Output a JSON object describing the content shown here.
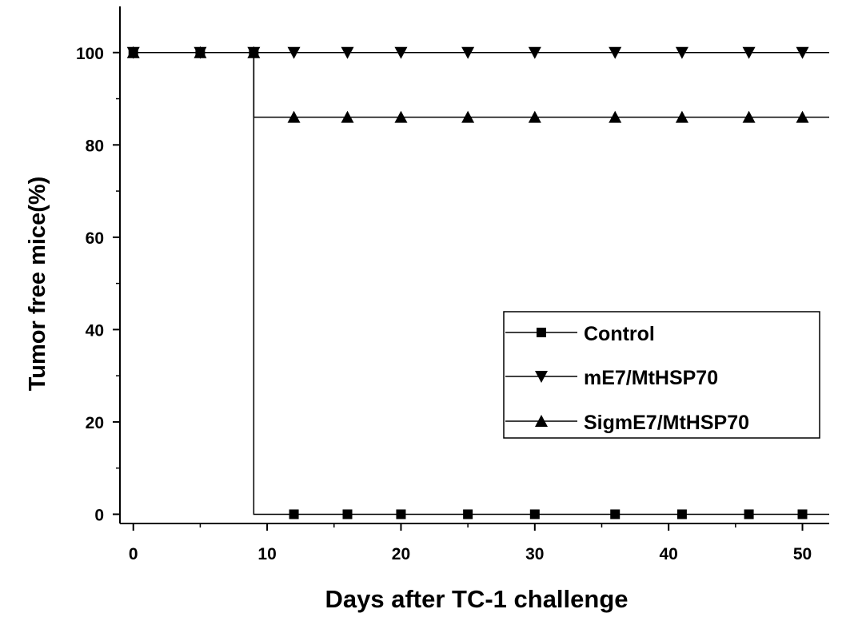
{
  "chart_data": {
    "type": "line",
    "title": "",
    "xlabel": "Days after TC-1 challenge",
    "ylabel": "Tumor free mice(%)",
    "xlim": [
      -1,
      52
    ],
    "ylim": [
      -2,
      110
    ],
    "xticks": [
      0,
      10,
      20,
      30,
      40,
      50
    ],
    "yticks": [
      0,
      20,
      40,
      60,
      80,
      100
    ],
    "xtick_labels": [
      "0",
      "10",
      "20",
      "30",
      "40",
      "50"
    ],
    "ytick_labels": [
      "0",
      "20",
      "40",
      "60",
      "80",
      "100"
    ],
    "grid": false,
    "legend_position": "center-right",
    "step_day": 9,
    "series": [
      {
        "name": "Control",
        "marker": "square",
        "x": [
          0,
          5,
          9,
          12,
          16,
          20,
          25,
          30,
          36,
          41,
          46,
          50
        ],
        "y": [
          100,
          100,
          100,
          0,
          0,
          0,
          0,
          0,
          0,
          0,
          0,
          0
        ]
      },
      {
        "name": "mE7/MtHSP70",
        "marker": "triangle-down",
        "x": [
          0,
          5,
          9,
          12,
          16,
          20,
          25,
          30,
          36,
          41,
          46,
          50
        ],
        "y": [
          100,
          100,
          100,
          100,
          100,
          100,
          100,
          100,
          100,
          100,
          100,
          100
        ]
      },
      {
        "name": "SigmE7/MtHSP70",
        "marker": "triangle-up",
        "x": [
          0,
          5,
          9,
          12,
          16,
          20,
          25,
          30,
          36,
          41,
          46,
          50
        ],
        "y": [
          100,
          100,
          100,
          86,
          86,
          86,
          86,
          86,
          86,
          86,
          86,
          86
        ]
      }
    ]
  }
}
